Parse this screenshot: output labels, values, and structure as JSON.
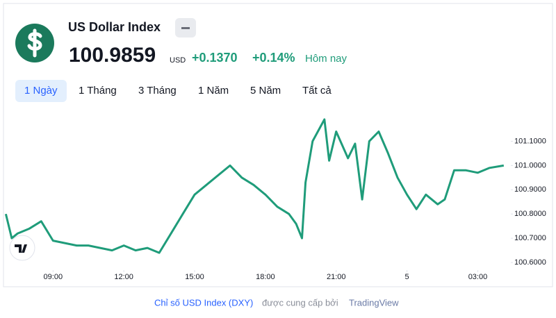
{
  "header": {
    "symbol_name": "US Dollar Index",
    "price": "100.9859",
    "currency": "USD",
    "change": "+0.1370",
    "change_pct": "+0.14%",
    "period": "Hôm nay"
  },
  "tabs": [
    "1 Ngày",
    "1 Tháng",
    "3 Tháng",
    "1 Năm",
    "5 Năm",
    "Tất cả"
  ],
  "chart_data": {
    "type": "line",
    "x": [
      7.0,
      7.25,
      7.5,
      8.0,
      8.5,
      9.0,
      9.5,
      10.0,
      10.5,
      11.0,
      11.5,
      12.0,
      12.5,
      13.0,
      13.5,
      14.0,
      14.5,
      15.0,
      15.5,
      16.0,
      16.5,
      17.0,
      17.5,
      18.0,
      18.5,
      19.0,
      19.3,
      19.55,
      19.7,
      20.0,
      20.5,
      20.7,
      21.0,
      21.5,
      21.8,
      22.1,
      22.4,
      22.8,
      23.2,
      23.6,
      24.0,
      24.4,
      24.8,
      25.3,
      25.6,
      26.0,
      26.5,
      27.0,
      27.5,
      28.1
    ],
    "series": [
      {
        "name": "DXY",
        "color": "#1f9c7a",
        "values": [
          100.8,
          100.7,
          100.72,
          100.74,
          100.77,
          100.69,
          100.68,
          100.67,
          100.67,
          100.66,
          100.65,
          100.67,
          100.65,
          100.66,
          100.64,
          100.72,
          100.8,
          100.88,
          100.92,
          100.96,
          101.0,
          100.95,
          100.92,
          100.88,
          100.83,
          100.8,
          100.76,
          100.7,
          100.93,
          101.1,
          101.19,
          101.02,
          101.14,
          101.03,
          101.09,
          100.86,
          101.1,
          101.14,
          101.05,
          100.95,
          100.88,
          100.82,
          100.88,
          100.84,
          100.86,
          100.98,
          100.98,
          100.97,
          100.99,
          101.0
        ]
      }
    ],
    "xlim": [
      6.9,
      28.4
    ],
    "xticks": [
      {
        "value": 9,
        "label": "09:00"
      },
      {
        "value": 12,
        "label": "12:00"
      },
      {
        "value": 15,
        "label": "15:00"
      },
      {
        "value": 18,
        "label": "18:00"
      },
      {
        "value": 21,
        "label": "21:00"
      },
      {
        "value": 24,
        "label": "5"
      },
      {
        "value": 27,
        "label": "03:00"
      }
    ],
    "ylim": [
      100.5,
      101.21
    ],
    "yticks": [
      {
        "value": 100.6,
        "label": "100.6000"
      },
      {
        "value": 100.7,
        "label": "100.7000"
      },
      {
        "value": 100.8,
        "label": "100.8000"
      },
      {
        "value": 100.9,
        "label": "100.9000"
      },
      {
        "value": 101.0,
        "label": "101.0000"
      },
      {
        "value": 101.1,
        "label": "101.1000"
      }
    ]
  },
  "footer": {
    "link": "Chỉ số USD Index (DXY)",
    "text": "được cung cấp bởi",
    "brand": "TradingView"
  }
}
